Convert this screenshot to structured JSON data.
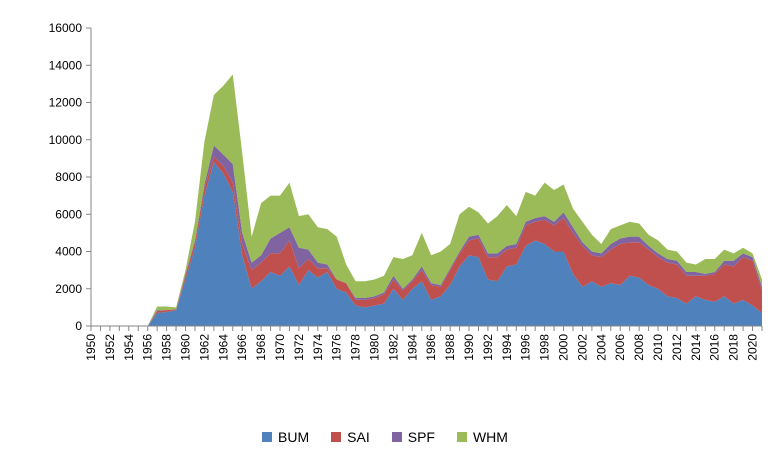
{
  "chart_data": {
    "type": "area",
    "stacked": true,
    "x": [
      1950,
      1951,
      1952,
      1953,
      1954,
      1955,
      1956,
      1957,
      1958,
      1959,
      1960,
      1961,
      1962,
      1963,
      1964,
      1965,
      1966,
      1967,
      1968,
      1969,
      1970,
      1971,
      1972,
      1973,
      1974,
      1975,
      1976,
      1977,
      1978,
      1979,
      1980,
      1981,
      1982,
      1983,
      1984,
      1985,
      1986,
      1987,
      1988,
      1989,
      1990,
      1991,
      1992,
      1993,
      1994,
      1995,
      1996,
      1997,
      1998,
      1999,
      2000,
      2001,
      2002,
      2003,
      2004,
      2005,
      2006,
      2007,
      2008,
      2009,
      2010,
      2011,
      2012,
      2013,
      2014,
      2015,
      2016,
      2017,
      2018,
      2019,
      2020,
      2021
    ],
    "x_tick_labels": [
      "1950",
      "1952",
      "1954",
      "1956",
      "1958",
      "1960",
      "1962",
      "1964",
      "1966",
      "1968",
      "1970",
      "1972",
      "1974",
      "1976",
      "1978",
      "1980",
      "1982",
      "1984",
      "1986",
      "1988",
      "1990",
      "1992",
      "1994",
      "1996",
      "1998",
      "2000",
      "2002",
      "2004",
      "2006",
      "2008",
      "2010",
      "2012",
      "2014",
      "2016",
      "2018",
      "2020"
    ],
    "ylim": [
      0,
      16000
    ],
    "y_ticks": [
      "0",
      "2000",
      "4000",
      "6000",
      "8000",
      "10000",
      "12000",
      "14000",
      "16000"
    ],
    "legend_position": "bottom",
    "series": [
      {
        "name": "BUM",
        "color": "#4F81BD",
        "values": [
          0,
          0,
          0,
          0,
          0,
          0,
          0,
          700,
          750,
          850,
          2500,
          4200,
          7000,
          8800,
          8200,
          7200,
          3800,
          2000,
          2400,
          2900,
          2700,
          3200,
          2200,
          3000,
          2600,
          2900,
          2000,
          1800,
          1100,
          1000,
          1100,
          1200,
          2000,
          1400,
          2000,
          2400,
          1400,
          1600,
          2200,
          3200,
          3800,
          3700,
          2500,
          2400,
          3200,
          3300,
          4300,
          4600,
          4400,
          4000,
          4000,
          2800,
          2100,
          2400,
          2100,
          2300,
          2200,
          2700,
          2600,
          2200,
          2000,
          1600,
          1500,
          1200,
          1600,
          1400,
          1300,
          1600,
          1200,
          1400,
          1100,
          700
        ]
      },
      {
        "name": "SAI",
        "color": "#C0504D",
        "values": [
          0,
          0,
          0,
          0,
          0,
          0,
          0,
          100,
          100,
          50,
          200,
          300,
          400,
          300,
          400,
          500,
          600,
          1000,
          1000,
          1000,
          1200,
          1400,
          900,
          600,
          500,
          200,
          500,
          500,
          300,
          400,
          400,
          500,
          500,
          500,
          400,
          600,
          800,
          500,
          800,
          700,
          800,
          1000,
          1200,
          1300,
          900,
          900,
          1100,
          1000,
          1300,
          1400,
          1800,
          2200,
          2200,
          1400,
          1600,
          1800,
          2200,
          1800,
          1900,
          1900,
          1700,
          1800,
          1800,
          1500,
          1100,
          1300,
          1500,
          1700,
          2000,
          2300,
          2400,
          1200
        ]
      },
      {
        "name": "SPF",
        "color": "#8064A2",
        "values": [
          0,
          0,
          0,
          0,
          0,
          0,
          0,
          50,
          0,
          0,
          100,
          100,
          200,
          600,
          600,
          1000,
          600,
          400,
          400,
          800,
          1100,
          700,
          1100,
          500,
          300,
          200,
          0,
          0,
          100,
          100,
          100,
          100,
          200,
          100,
          100,
          200,
          100,
          100,
          100,
          100,
          200,
          200,
          200,
          200,
          200,
          200,
          200,
          200,
          200,
          200,
          300,
          300,
          200,
          200,
          200,
          300,
          300,
          300,
          300,
          200,
          200,
          200,
          200,
          200,
          200,
          100,
          100,
          200,
          300,
          200,
          200,
          200
        ]
      },
      {
        "name": "WHM",
        "color": "#9BBB59",
        "values": [
          0,
          0,
          0,
          0,
          0,
          0,
          0,
          200,
          200,
          100,
          200,
          1000,
          2300,
          2700,
          3700,
          4800,
          4300,
          1400,
          2800,
          2300,
          2000,
          2400,
          1700,
          1900,
          1900,
          1900,
          2300,
          1000,
          900,
          900,
          900,
          900,
          1000,
          1600,
          1300,
          1800,
          1500,
          1800,
          1300,
          2000,
          1600,
          1200,
          1600,
          2000,
          2200,
          1500,
          1600,
          1200,
          1800,
          1700,
          1500,
          1000,
          1100,
          900,
          500,
          800,
          700,
          800,
          700,
          600,
          700,
          500,
          500,
          500,
          400,
          800,
          700,
          600,
          400,
          300,
          200,
          400
        ]
      }
    ]
  }
}
